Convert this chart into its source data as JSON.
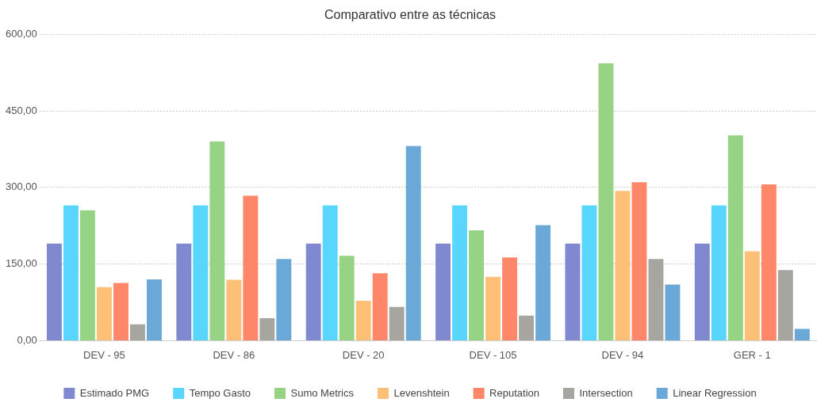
{
  "chart_data": {
    "type": "bar",
    "title": "Comparativo entre as técnicas",
    "categories": [
      "DEV - 95",
      "DEV - 86",
      "DEV - 20",
      "DEV - 105",
      "DEV - 94",
      "GER - 1"
    ],
    "series": [
      {
        "name": "Estimado PMG",
        "color": "#8088d0",
        "values": [
          190,
          190,
          190,
          190,
          190,
          190
        ]
      },
      {
        "name": "Tempo Gasto",
        "color": "#59d6fd",
        "values": [
          265,
          265,
          265,
          265,
          265,
          265
        ]
      },
      {
        "name": "Sumo Metrics",
        "color": "#97d385",
        "values": [
          255,
          390,
          166,
          216,
          543,
          402
        ]
      },
      {
        "name": "Levenshtein",
        "color": "#fec076",
        "values": [
          105,
          119,
          78,
          125,
          293,
          175
        ]
      },
      {
        "name": "Reputation",
        "color": "#fe8769",
        "values": [
          113,
          284,
          132,
          163,
          310,
          306
        ]
      },
      {
        "name": "Intersection",
        "color": "#a6a5a0",
        "values": [
          32,
          44,
          66,
          49,
          160,
          138
        ]
      },
      {
        "name": "Linear Regression",
        "color": "#6aa8d7",
        "values": [
          120,
          160,
          381,
          226,
          110,
          23
        ]
      }
    ],
    "ylim": [
      0,
      600
    ],
    "yticks": [
      {
        "value": 0,
        "label": "0,00"
      },
      {
        "value": 150,
        "label": "150,00"
      },
      {
        "value": 300,
        "label": "300,00"
      },
      {
        "value": 450,
        "label": "450,00"
      },
      {
        "value": 600,
        "label": "600,00"
      }
    ],
    "grid": "y",
    "legend": "bottom"
  }
}
